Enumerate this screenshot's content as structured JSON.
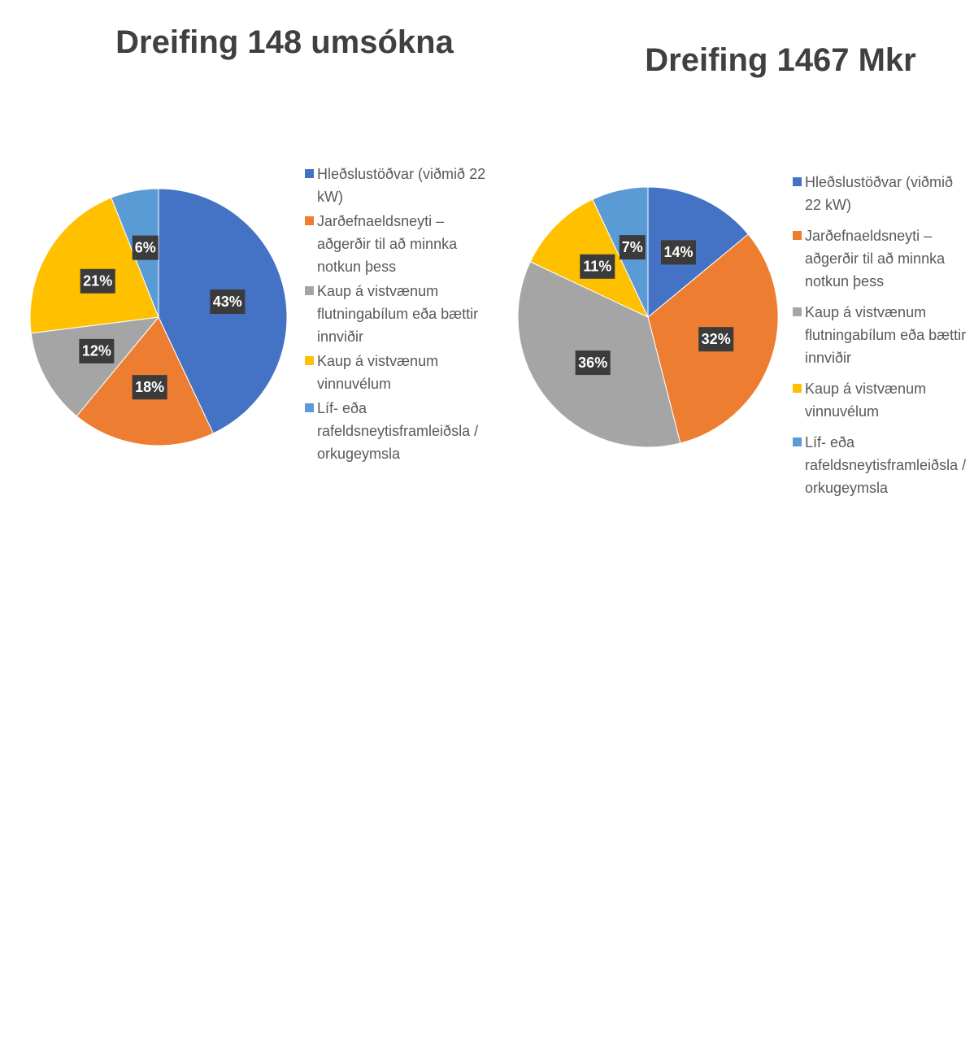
{
  "chart_data": [
    {
      "type": "pie",
      "title": "Dreifing 148 umsókna",
      "categories": [
        "Hleðslustöðvar (viðmið 22 kW)",
        "Jarðefnaeldsneyti – aðgerðir til að minnka notkun þess",
        "Kaup á vistvænum flutningabílum eða bættir innviðir",
        "Kaup á vistvænum vinnuvélum",
        "Líf- eða rafeldsneytisframleiðsla / orkugeymsla"
      ],
      "values": [
        43,
        18,
        12,
        21,
        6
      ],
      "value_labels": [
        "43%",
        "18%",
        "12%",
        "21%",
        "6%"
      ],
      "colors": [
        "#4472c4",
        "#ed7d31",
        "#a5a5a5",
        "#ffc000",
        "#5b9bd5"
      ],
      "legend": "right"
    },
    {
      "type": "pie",
      "title": "Dreifing 1467 Mkr",
      "categories": [
        "Hleðslustöðvar (viðmið 22 kW)",
        "Jarðefnaeldsneyti – aðgerðir til að minnka notkun þess",
        "Kaup á vistvænum flutningabílum eða bættir innviðir",
        "Kaup á vistvænum vinnuvélum",
        "Líf- eða rafeldsneytisframleiðsla / orkugeymsla"
      ],
      "values": [
        14,
        32,
        36,
        11,
        7
      ],
      "value_labels": [
        "14%",
        "32%",
        "36%",
        "11%",
        "7%"
      ],
      "colors": [
        "#4472c4",
        "#ed7d31",
        "#a5a5a5",
        "#ffc000",
        "#5b9bd5"
      ],
      "legend": "right"
    }
  ]
}
